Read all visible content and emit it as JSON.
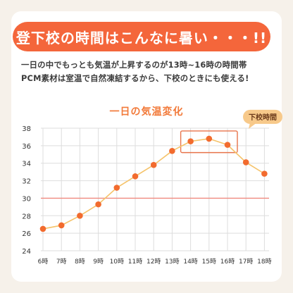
{
  "header": {
    "title": "登下校の時間はこんなに暑い・・・!!"
  },
  "description": {
    "line1": "一日の中でもっとも気温が上昇するのが13時~16時の時間帯",
    "line2": "PCM素材は室温で自然凍結するから、下校のときにも使える!"
  },
  "colors": {
    "accent": "#f4663b",
    "line": "#f5c36a",
    "point": "#f26b2e",
    "threshold": "#f08b80",
    "callout": "#f7c98a",
    "highlight_box": "#e8734a",
    "grid": "#dddddd"
  },
  "chart_data": {
    "type": "line",
    "title": "一日の気温変化",
    "categories": [
      "6時",
      "7時",
      "8時",
      "9時",
      "10時",
      "11時",
      "12時",
      "13時",
      "14時",
      "15時",
      "16時",
      "17時",
      "18時"
    ],
    "series": [
      {
        "values": [
          26.5,
          26.9,
          28.0,
          29.3,
          31.2,
          32.5,
          33.8,
          35.4,
          36.5,
          36.8,
          36.1,
          34.1,
          32.8
        ]
      }
    ],
    "ylim": [
      24,
      38
    ],
    "yticks": [
      24,
      26,
      28,
      30,
      32,
      34,
      36,
      38
    ],
    "threshold": 30,
    "highlight": {
      "label": "下校時間",
      "categories": [
        "14時",
        "15時",
        "16時"
      ]
    },
    "grid": true
  }
}
